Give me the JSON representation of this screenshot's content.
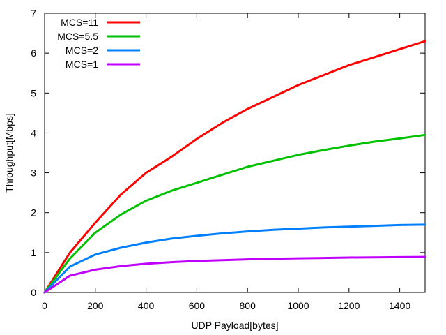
{
  "chart_data": {
    "type": "line",
    "title": "",
    "xlabel": "UDP Payload[bytes]",
    "ylabel": "Throughput[Mbps]",
    "xlim": [
      0,
      1500
    ],
    "ylim": [
      0,
      7
    ],
    "xticks": [
      0,
      200,
      400,
      600,
      800,
      1000,
      1200,
      1400
    ],
    "yticks": [
      0,
      1,
      2,
      3,
      4,
      5,
      6,
      7
    ],
    "grid": false,
    "legend_position": "top-left",
    "x": [
      0,
      100,
      200,
      300,
      400,
      500,
      600,
      700,
      800,
      900,
      1000,
      1100,
      1200,
      1300,
      1400,
      1500
    ],
    "series": [
      {
        "name": "MCS=11",
        "color": "#ff0000",
        "values": [
          0,
          1.0,
          1.75,
          2.45,
          3.0,
          3.4,
          3.85,
          4.25,
          4.6,
          4.9,
          5.2,
          5.45,
          5.7,
          5.9,
          6.1,
          6.3
        ]
      },
      {
        "name": "MCS=5.5",
        "color": "#00c000",
        "values": [
          0,
          0.85,
          1.5,
          1.95,
          2.3,
          2.55,
          2.75,
          2.95,
          3.15,
          3.3,
          3.45,
          3.57,
          3.68,
          3.78,
          3.86,
          3.95
        ]
      },
      {
        "name": "MCS=2",
        "color": "#0080ff",
        "values": [
          0,
          0.65,
          0.95,
          1.12,
          1.25,
          1.35,
          1.42,
          1.48,
          1.53,
          1.57,
          1.6,
          1.63,
          1.65,
          1.67,
          1.69,
          1.7
        ]
      },
      {
        "name": "MCS=1",
        "color": "#c000ff",
        "values": [
          0,
          0.42,
          0.57,
          0.66,
          0.72,
          0.76,
          0.79,
          0.81,
          0.83,
          0.845,
          0.855,
          0.865,
          0.875,
          0.88,
          0.885,
          0.89
        ]
      }
    ]
  }
}
